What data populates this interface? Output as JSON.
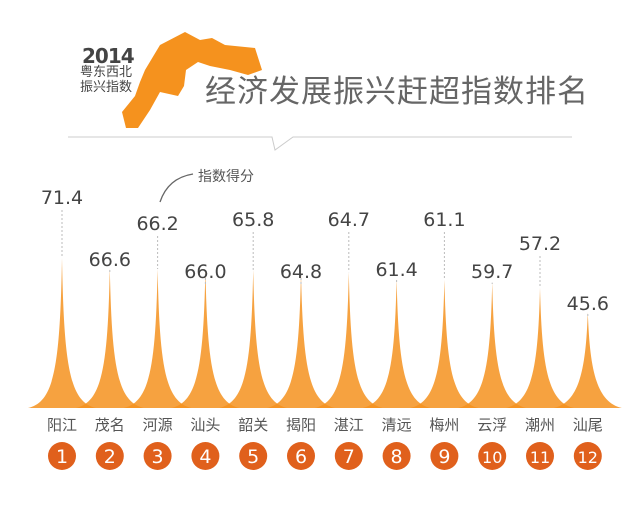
{
  "header": {
    "logo_year": "2014",
    "logo_line1": "粤东西北",
    "logo_line2": "振兴指数",
    "title": "经济发展振兴赶超指数排名"
  },
  "colors": {
    "spike": "#f5921e",
    "band": "#e5631a",
    "badge": "#e0601c",
    "text": "#555555"
  },
  "chart_data": {
    "type": "bar",
    "title": "经济发展振兴赶超指数排名",
    "legend_label": "指数得分",
    "categories": [
      "阳江",
      "茂名",
      "河源",
      "汕头",
      "韶关",
      "揭阳",
      "湛江",
      "清远",
      "梅州",
      "云浮",
      "潮州",
      "汕尾"
    ],
    "ranks": [
      "1",
      "2",
      "3",
      "4",
      "5",
      "6",
      "7",
      "8",
      "9",
      "10",
      "11",
      "12"
    ],
    "values": [
      71.4,
      66.6,
      66.2,
      66.0,
      65.8,
      64.8,
      64.7,
      61.4,
      61.1,
      59.7,
      57.2,
      45.6
    ],
    "value_labels": [
      "71.4",
      "66.6",
      "66.2",
      "66.0",
      "65.8",
      "64.8",
      "64.7",
      "61.4",
      "61.1",
      "59.7",
      "57.2",
      "45.6"
    ],
    "ylim": [
      0,
      75
    ]
  }
}
